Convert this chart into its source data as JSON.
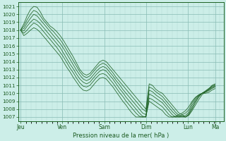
{
  "xlabel": "Pression niveau de la mer( hPa )",
  "ylim": [
    1006.5,
    1021.5
  ],
  "yticks": [
    1007,
    1008,
    1009,
    1010,
    1011,
    1012,
    1013,
    1014,
    1015,
    1016,
    1017,
    1018,
    1019,
    1020,
    1021
  ],
  "xtick_labels": [
    "Jeu",
    "Ven",
    "Sam",
    "Dim",
    "Lun",
    "Ma"
  ],
  "xtick_positions": [
    0.0,
    1.0,
    2.0,
    3.0,
    4.0,
    4.65
  ],
  "xlim": [
    -0.05,
    4.85
  ],
  "bg_color": "#cceee8",
  "grid_color_minor": "#b0d8d2",
  "grid_color_major": "#88bbb4",
  "line_color": "#1a6020",
  "series": [
    [
      1018.0,
      1018.8,
      1019.8,
      1020.6,
      1021.0,
      1020.9,
      1020.3,
      1019.5,
      1019.0,
      1018.5,
      1018.2,
      1017.8,
      1017.3,
      1016.7,
      1016.0,
      1015.3,
      1014.6,
      1013.8,
      1013.0,
      1012.5,
      1012.3,
      1012.5,
      1013.0,
      1013.5,
      1014.0,
      1014.2,
      1014.0,
      1013.5,
      1013.0,
      1012.5,
      1012.0,
      1011.5,
      1011.0,
      1010.5,
      1010.0,
      1009.5,
      1009.0,
      1008.5,
      1008.0,
      1011.2,
      1011.0,
      1010.5,
      1010.2,
      1010.0,
      1009.5,
      1009.0,
      1008.5,
      1008.0,
      1007.5,
      1007.3,
      1007.0,
      1007.2,
      1007.8,
      1008.5,
      1009.2,
      1009.8,
      1010.2,
      1010.5,
      1011.0,
      1011.2
    ],
    [
      1018.0,
      1018.5,
      1019.3,
      1020.0,
      1020.5,
      1020.3,
      1019.8,
      1019.2,
      1018.7,
      1018.2,
      1017.8,
      1017.3,
      1016.8,
      1016.2,
      1015.5,
      1014.8,
      1014.1,
      1013.4,
      1012.7,
      1012.2,
      1012.0,
      1012.2,
      1012.7,
      1013.2,
      1013.6,
      1013.8,
      1013.6,
      1013.1,
      1012.6,
      1012.0,
      1011.5,
      1011.0,
      1010.5,
      1010.0,
      1009.5,
      1009.0,
      1008.5,
      1008.0,
      1007.7,
      1010.8,
      1010.6,
      1010.2,
      1009.9,
      1009.6,
      1009.1,
      1008.6,
      1008.1,
      1007.6,
      1007.2,
      1007.1,
      1007.0,
      1007.3,
      1008.0,
      1008.8,
      1009.5,
      1010.0,
      1010.3,
      1010.6,
      1010.9,
      1011.1
    ],
    [
      1018.0,
      1018.2,
      1018.9,
      1019.5,
      1020.0,
      1019.8,
      1019.3,
      1018.8,
      1018.3,
      1017.8,
      1017.3,
      1016.8,
      1016.3,
      1015.7,
      1015.0,
      1014.3,
      1013.6,
      1012.9,
      1012.3,
      1011.8,
      1011.6,
      1011.8,
      1012.3,
      1012.8,
      1013.2,
      1013.4,
      1013.2,
      1012.7,
      1012.2,
      1011.6,
      1011.1,
      1010.5,
      1010.0,
      1009.5,
      1009.0,
      1008.5,
      1008.0,
      1007.5,
      1007.3,
      1010.4,
      1010.2,
      1009.8,
      1009.5,
      1009.2,
      1008.7,
      1008.2,
      1007.7,
      1007.3,
      1007.0,
      1007.0,
      1007.0,
      1007.4,
      1008.2,
      1009.0,
      1009.6,
      1010.0,
      1010.2,
      1010.5,
      1010.8,
      1011.0
    ],
    [
      1018.0,
      1017.9,
      1018.5,
      1019.0,
      1019.4,
      1019.2,
      1018.8,
      1018.3,
      1017.8,
      1017.3,
      1016.8,
      1016.3,
      1015.8,
      1015.1,
      1014.4,
      1013.7,
      1013.1,
      1012.4,
      1011.8,
      1011.4,
      1011.2,
      1011.4,
      1011.9,
      1012.4,
      1012.8,
      1013.0,
      1012.8,
      1012.3,
      1011.8,
      1011.2,
      1010.6,
      1010.1,
      1009.5,
      1009.0,
      1008.5,
      1008.0,
      1007.5,
      1007.1,
      1007.0,
      1009.9,
      1009.7,
      1009.4,
      1009.1,
      1008.8,
      1008.3,
      1007.8,
      1007.3,
      1007.0,
      1007.0,
      1007.1,
      1007.2,
      1007.6,
      1008.5,
      1009.2,
      1009.7,
      1010.0,
      1010.2,
      1010.4,
      1010.7,
      1010.9
    ],
    [
      1018.0,
      1017.6,
      1018.0,
      1018.5,
      1018.9,
      1018.7,
      1018.3,
      1017.8,
      1017.3,
      1016.8,
      1016.3,
      1015.8,
      1015.2,
      1014.6,
      1013.9,
      1013.2,
      1012.6,
      1011.9,
      1011.3,
      1010.9,
      1010.8,
      1011.0,
      1011.5,
      1012.0,
      1012.4,
      1012.5,
      1012.3,
      1011.8,
      1011.3,
      1010.7,
      1010.1,
      1009.6,
      1009.0,
      1008.5,
      1008.0,
      1007.5,
      1007.1,
      1007.0,
      1007.0,
      1009.4,
      1009.2,
      1008.9,
      1008.6,
      1008.3,
      1007.8,
      1007.3,
      1007.0,
      1007.0,
      1007.1,
      1007.3,
      1007.5,
      1007.9,
      1008.8,
      1009.4,
      1009.8,
      1010.0,
      1010.1,
      1010.3,
      1010.6,
      1010.8
    ],
    [
      1018.0,
      1017.3,
      1017.6,
      1018.0,
      1018.3,
      1018.1,
      1017.7,
      1017.2,
      1016.7,
      1016.2,
      1015.7,
      1015.2,
      1014.7,
      1014.0,
      1013.3,
      1012.7,
      1012.0,
      1011.4,
      1010.8,
      1010.4,
      1010.3,
      1010.5,
      1011.0,
      1011.5,
      1011.9,
      1012.0,
      1011.8,
      1011.3,
      1010.8,
      1010.2,
      1009.6,
      1009.0,
      1008.5,
      1007.9,
      1007.4,
      1007.0,
      1007.0,
      1007.0,
      1007.1,
      1009.0,
      1008.7,
      1008.4,
      1008.1,
      1007.8,
      1007.3,
      1007.0,
      1007.0,
      1007.1,
      1007.3,
      1007.5,
      1007.8,
      1008.3,
      1009.0,
      1009.5,
      1009.8,
      1010.0,
      1010.0,
      1010.1,
      1010.4,
      1010.6
    ]
  ]
}
